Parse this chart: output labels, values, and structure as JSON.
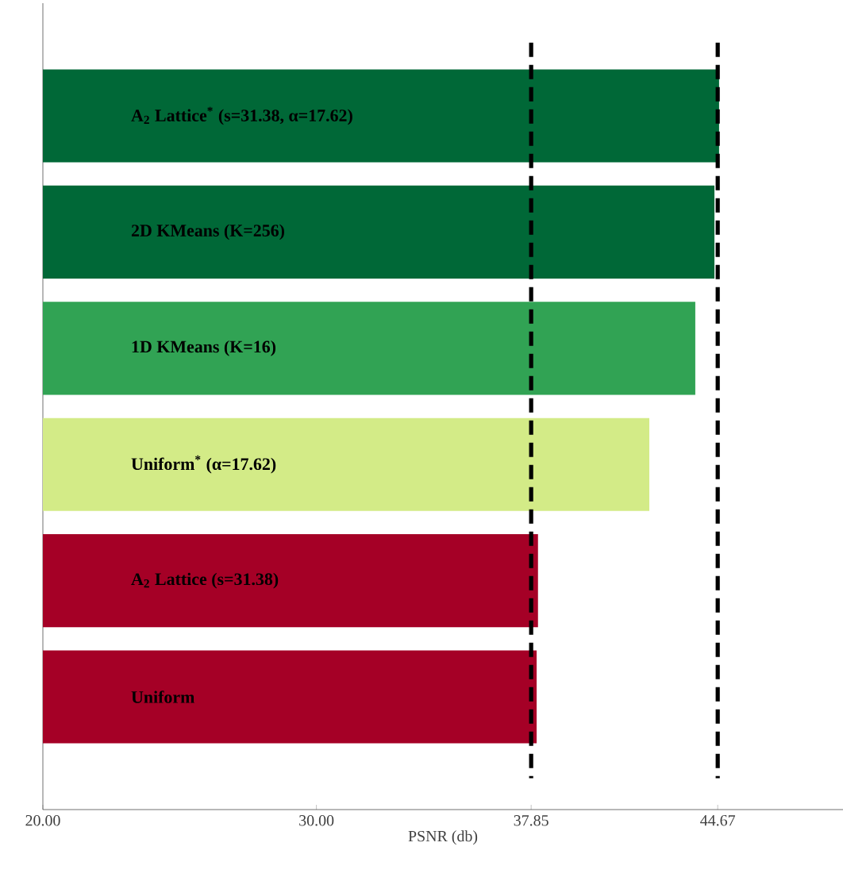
{
  "chart_data": {
    "type": "bar",
    "orientation": "horizontal",
    "xlabel": "PSNR (db)",
    "categories": [
      "A$_{2}$ Lattice$^{*}$ (s=31.38, α=17.62)",
      "2D KMeans (K=256)",
      "1D KMeans (K=16)",
      "Uniform$^{*}$ (α=17.62)",
      "A$_{2}$ Lattice (s=31.38)",
      "Uniform"
    ],
    "values": [
      44.72,
      44.55,
      43.85,
      42.17,
      38.1,
      38.05
    ],
    "colors": [
      "#006837",
      "#006837",
      "#31a354",
      "#d3eb87",
      "#a50026",
      "#a50026"
    ],
    "xlim": [
      20,
      49.25
    ],
    "xticks": [
      {
        "value": 20,
        "label": "20.00"
      },
      {
        "value": 30,
        "label": "30.00"
      },
      {
        "value": 37.85,
        "label": "37.85"
      },
      {
        "value": 44.67,
        "label": "44.67"
      }
    ],
    "ref_lines": [
      {
        "axis": "x",
        "value": 37.85,
        "color": "#000000",
        "line_style": "dashed"
      },
      {
        "axis": "x",
        "value": 44.67,
        "color": "#000000",
        "line_style": "dashed"
      }
    ],
    "grid": false
  }
}
